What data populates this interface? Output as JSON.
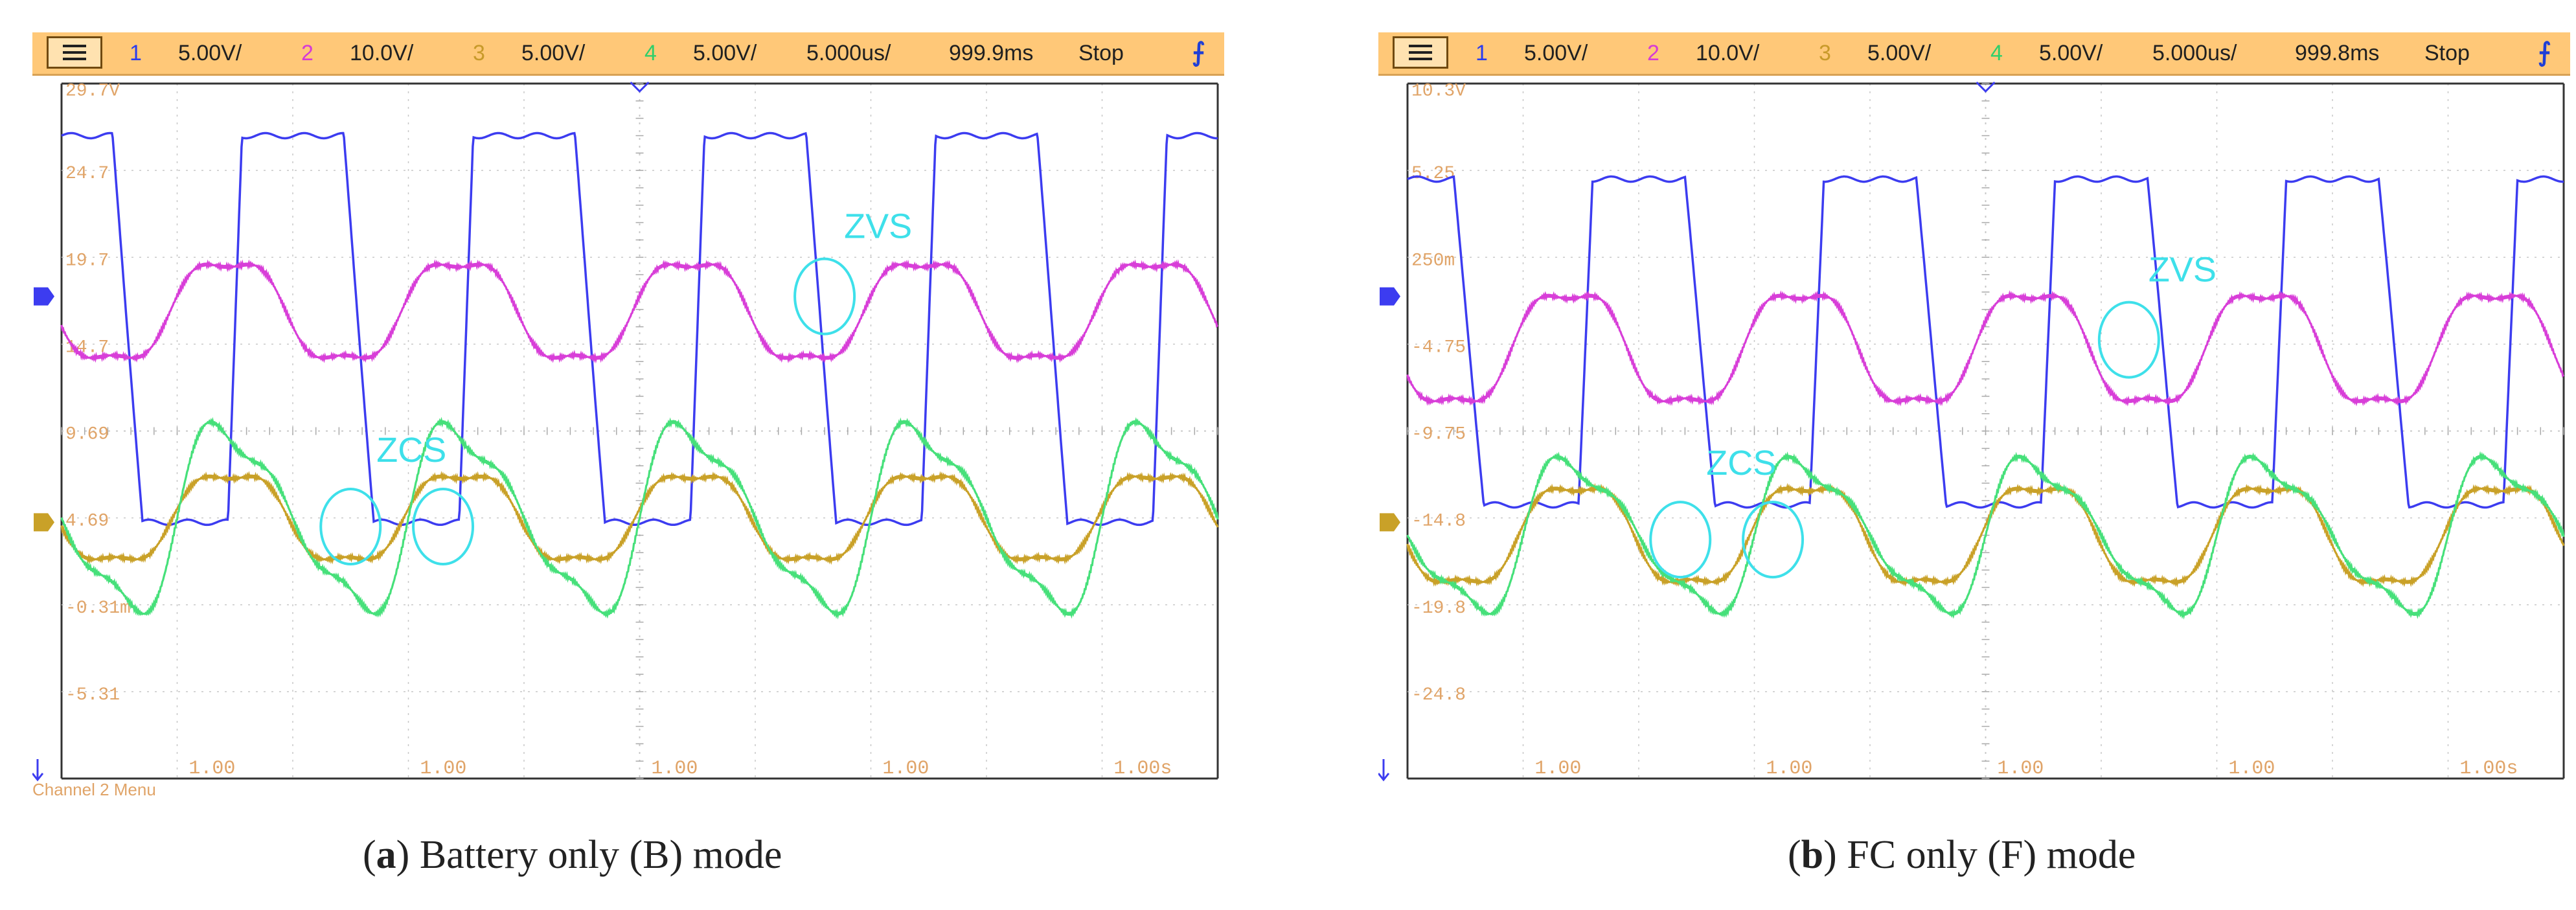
{
  "chart_data": [
    {
      "type": "line",
      "panel": "a",
      "caption": {
        "letter": "a",
        "text": "Battery only (B) mode"
      },
      "toolbar": {
        "channels": [
          {
            "num": "1",
            "scale": "5.00V/",
            "color": "#2a3cf0"
          },
          {
            "num": "2",
            "scale": "10.0V/",
            "color": "#d63bd6"
          },
          {
            "num": "3",
            "scale": "5.00V/",
            "color": "#c89a2a"
          },
          {
            "num": "4",
            "scale": "5.00V/",
            "color": "#2fcf6a"
          }
        ],
        "timebase": "5.000us/",
        "delay": "999.9ms",
        "run_state": "Stop"
      },
      "ref_labels_top": [
        "29.7V",
        "24.7",
        "19.7",
        "14.7",
        "9.69"
      ],
      "ref_labels_bottom": [
        "4.69",
        "-0.31m",
        "-5.31"
      ],
      "time_labels": [
        "1.00",
        "1.00",
        "1.00",
        "1.00",
        "1.00s"
      ],
      "status_text": "Channel 2 Menu",
      "annotations": [
        {
          "text": "ZVS",
          "circles": [
            [
              3.3,
              1.55
            ]
          ]
        },
        {
          "text": "ZCS",
          "circles": [
            [
              1.25,
              -1.1
            ],
            [
              1.65,
              -1.1
            ]
          ]
        }
      ],
      "time_range": [
        0,
        5
      ],
      "period": 1,
      "series": [
        {
          "channel": "1",
          "color": "#3c3cf0",
          "low": -1.05,
          "high": 3.4,
          "rise_start": 0.72,
          "rise_end": 0.78,
          "fall_start": 0.22,
          "fall_end": 0.35
        },
        {
          "channel": "2",
          "color": "#d83ed8",
          "base": 1.38,
          "amp": 0.62,
          "phase": 0.53
        },
        {
          "channel": "3",
          "color": "#c9a128",
          "base": -1.0,
          "amp": 0.55,
          "phase": 0.52
        },
        {
          "channel": "4",
          "color": "#46e07a",
          "base": -1.0,
          "amp": 1.0,
          "phase": 0.5
        }
      ]
    },
    {
      "type": "line",
      "panel": "b",
      "caption": {
        "letter": "b",
        "text": "FC only (F) mode"
      },
      "toolbar": {
        "channels": [
          {
            "num": "1",
            "scale": "5.00V/",
            "color": "#2a3cf0"
          },
          {
            "num": "2",
            "scale": "10.0V/",
            "color": "#d63bd6"
          },
          {
            "num": "3",
            "scale": "5.00V/",
            "color": "#c89a2a"
          },
          {
            "num": "4",
            "scale": "5.00V/",
            "color": "#2fcf6a"
          }
        ],
        "timebase": "5.000us/",
        "delay": "999.8ms",
        "run_state": "Stop"
      },
      "ref_labels_top": [
        "10.3V",
        "5.25",
        "250m",
        "-4.75",
        "-9.75"
      ],
      "ref_labels_bottom": [
        "-14.8",
        "-19.8",
        "-24.8"
      ],
      "time_labels": [
        "1.00",
        "1.00",
        "1.00",
        "1.00",
        "1.00s"
      ],
      "status_text": "",
      "annotations": [
        {
          "text": "ZVS",
          "circles": [
            [
              3.12,
              1.05
            ]
          ]
        },
        {
          "text": "ZCS",
          "circles": [
            [
              1.18,
              -1.25
            ],
            [
              1.58,
              -1.25
            ]
          ]
        }
      ],
      "time_range": [
        0,
        5
      ],
      "period": 1,
      "series": [
        {
          "channel": "1",
          "color": "#3c3cf0",
          "low": -0.85,
          "high": 2.9,
          "rise_start": 0.74,
          "rise_end": 0.8,
          "fall_start": 0.2,
          "fall_end": 0.33
        },
        {
          "channel": "2",
          "color": "#d83ed8",
          "base": 0.95,
          "amp": 0.7,
          "phase": 0.55
        },
        {
          "channel": "3",
          "color": "#c9a128",
          "base": -1.2,
          "amp": 0.62,
          "phase": 0.52
        },
        {
          "channel": "4",
          "color": "#46e07a",
          "base": -1.2,
          "amp": 0.82,
          "phase": 0.5
        }
      ]
    }
  ]
}
